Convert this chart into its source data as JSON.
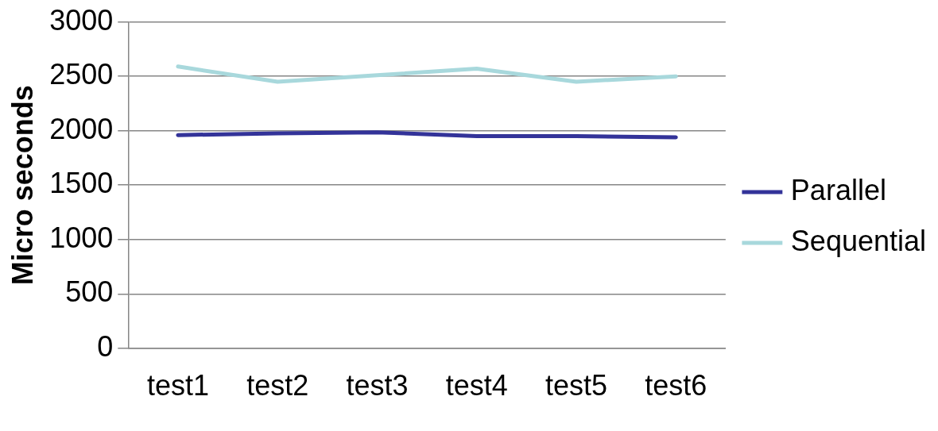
{
  "chart_data": {
    "type": "line",
    "ylabel": "Micro seconds",
    "categories": [
      "test1",
      "test2",
      "test3",
      "test4",
      "test5",
      "test6"
    ],
    "series": [
      {
        "name": "Parallel",
        "color": "#333399",
        "values": [
          1960,
          1975,
          1985,
          1950,
          1950,
          1940
        ]
      },
      {
        "name": "Sequential",
        "color": "#a8d8dc",
        "values": [
          2590,
          2450,
          2510,
          2570,
          2450,
          2500
        ]
      }
    ],
    "ylim": [
      0,
      3000
    ],
    "yticks": [
      0,
      500,
      1000,
      1500,
      2000,
      2500,
      3000
    ],
    "grid": "y",
    "legend": "right",
    "marker": "none",
    "line_style": "solid"
  }
}
